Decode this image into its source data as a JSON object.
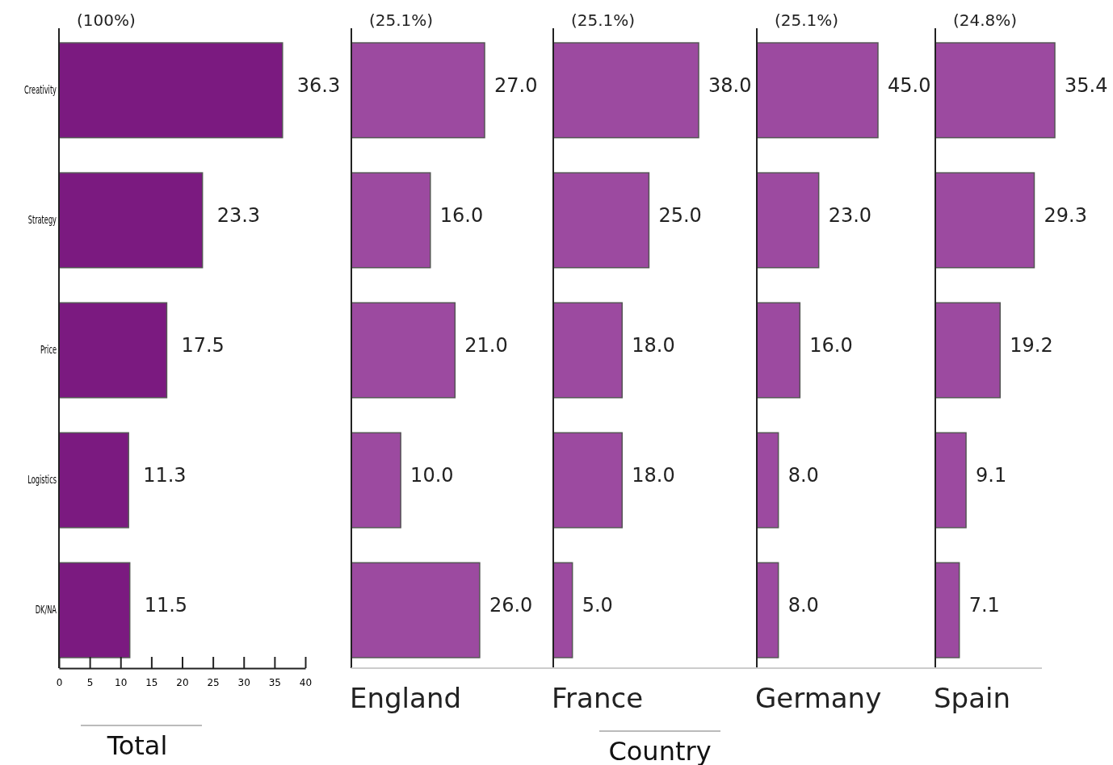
{
  "chart_data": [
    {
      "type": "bar",
      "orientation": "horizontal",
      "subtitle": "(100%)",
      "xlabel": "Total",
      "categories": [
        "Creativity",
        "Strategy",
        "Price",
        "Logistics",
        "DK/NA"
      ],
      "values": [
        36.3,
        23.3,
        17.5,
        11.3,
        11.5
      ],
      "color": "#7b1a80",
      "xlim": [
        0,
        40
      ],
      "xticks": [
        0,
        5,
        10,
        15,
        20,
        25,
        30,
        35,
        40
      ],
      "data_labels": true
    },
    {
      "type": "bar",
      "orientation": "horizontal",
      "subtitle": "(25.1%)",
      "xlabel": "England",
      "categories": [
        null,
        null,
        null,
        null,
        null
      ],
      "values": [
        27.0,
        16.0,
        21.0,
        10.0,
        26.0
      ],
      "value_labels": [
        "27.0",
        "16.0",
        "21.0",
        "10.0",
        "26.0"
      ],
      "color": "#9c4aa0",
      "annotations": [
        "Country"
      ]
    },
    {
      "type": "bar",
      "orientation": "horizontal",
      "subtitle": "(25.1%)",
      "xlabel": "France",
      "categories": [
        null,
        null,
        null,
        null,
        null
      ],
      "values": [
        38.0,
        25.0,
        18.0,
        18.0,
        5.0
      ],
      "value_labels": [
        "38.0",
        "25.0",
        "18.0",
        "18.0",
        "5.0"
      ],
      "color": "#9c4aa0"
    },
    {
      "type": "bar",
      "orientation": "horizontal",
      "subtitle": "(25.1%)",
      "xlabel": "Germany",
      "categories": [
        null,
        null,
        null,
        null,
        null
      ],
      "values": [
        45.0,
        23.0,
        16.0,
        8.0,
        8.0
      ],
      "value_labels": [
        "45.0",
        "23.0",
        "16.0",
        "8.0",
        "8.0"
      ],
      "color": "#9c4aa0"
    },
    {
      "type": "bar",
      "orientation": "horizontal",
      "subtitle": "(24.8%)",
      "xlabel": "Spain",
      "categories": [
        null,
        null,
        null,
        null,
        null
      ],
      "values": [
        35.4,
        29.3,
        19.2,
        9.1,
        7.1
      ],
      "value_labels": [
        "35.4",
        "29.3",
        "19.2",
        "9.1",
        "7.1"
      ],
      "color": "#9c4aa0"
    }
  ]
}
